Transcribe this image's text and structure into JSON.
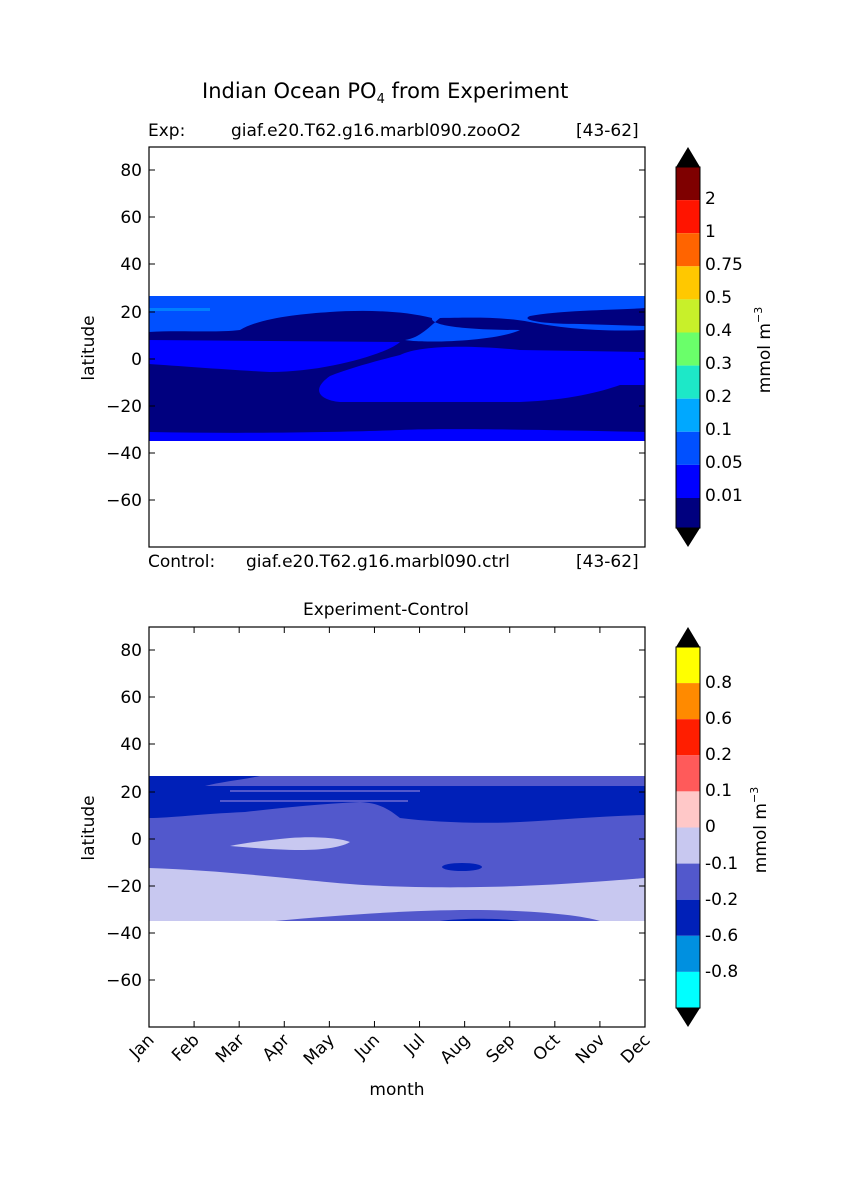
{
  "figure": {
    "title_main": "Indian Ocean PO",
    "title_sub": "4",
    "title_rest": " from Experiment"
  },
  "panel_top": {
    "exp_label": "Exp:",
    "exp_name": "giaf.e20.T62.g16.marbl090.zooO2",
    "exp_years": "[43-62]",
    "control_label": "Control:",
    "control_name": "giaf.e20.T62.g16.marbl090.ctrl",
    "control_years": "[43-62]"
  },
  "panel_bottom": {
    "title": "Experiment-Control"
  },
  "colorbar_top": {
    "unit": "mmol m",
    "unit_exp": "−3",
    "levels": [
      "0.01",
      "0.05",
      "0.1",
      "0.2",
      "0.3",
      "0.4",
      "0.5",
      "0.75",
      "1",
      "2"
    ],
    "colors": [
      "#00007f",
      "#0000ff",
      "#0050ff",
      "#00a8ff",
      "#1de8c8",
      "#6aff6a",
      "#c8f02a",
      "#ffc800",
      "#ff6400",
      "#ff1400",
      "#7f0000"
    ],
    "extend_colors": [
      "#000000",
      "#000000"
    ]
  },
  "colorbar_bottom": {
    "unit": "mmol m",
    "unit_exp": "−3",
    "levels": [
      "-0.8",
      "-0.6",
      "-0.2",
      "-0.1",
      "0",
      "0.1",
      "0.2",
      "0.6",
      "0.8"
    ],
    "colors": [
      "#00ffff",
      "#0090e0",
      "#0020b8",
      "#5258cc",
      "#c8c8f0",
      "#ffc8c8",
      "#ff5a5a",
      "#ff1e00",
      "#ff8a00",
      "#ffff00"
    ],
    "extend_colors": [
      "#000000",
      "#000000"
    ]
  },
  "chart_data": [
    {
      "type": "heatmap",
      "title": "Indian Ocean PO4 from Experiment",
      "xlabel": "",
      "ylabel": "latitude",
      "y_ticks": [
        80,
        60,
        40,
        20,
        0,
        -20,
        -40,
        -60
      ],
      "ylim": [
        -80,
        90
      ],
      "data_lat_range": [
        -34,
        27
      ],
      "regions": [
        {
          "value_range": "0.05-0.1",
          "lat_range": [
            23,
            27
          ],
          "note": "northern edge"
        },
        {
          "value_range": "0.05-0.1",
          "lat_range": [
            8,
            21
          ],
          "months": [
            "Jul",
            "Aug",
            "Sep"
          ]
        },
        {
          "value_range": "0.01-0.05",
          "lat_range": [
            -5,
            8
          ]
        },
        {
          "value_range": "0-0.01",
          "lat_range": [
            -34,
            -5
          ]
        }
      ]
    },
    {
      "type": "heatmap",
      "title": "Experiment-Control",
      "xlabel": "month",
      "ylabel": "latitude",
      "x_ticks": [
        "Jan",
        "Feb",
        "Mar",
        "Apr",
        "May",
        "Jun",
        "Jul",
        "Aug",
        "Sep",
        "Oct",
        "Nov",
        "Dec"
      ],
      "y_ticks": [
        80,
        60,
        40,
        20,
        0,
        -20,
        -40,
        -60
      ],
      "ylim": [
        -80,
        90
      ],
      "data_lat_range": [
        -34,
        27
      ],
      "regions": [
        {
          "value_range": "-0.2 to -0.1",
          "lat_range": [
            22,
            27
          ]
        },
        {
          "value_range": "-0.6 to -0.2",
          "lat_range": [
            8,
            22
          ]
        },
        {
          "value_range": "-0.2 to -0.1",
          "lat_range": [
            -20,
            8
          ]
        },
        {
          "value_range": "-0.1 to 0",
          "lat_range": [
            -34,
            -12
          ]
        },
        {
          "value_range": "-0.1 to 0",
          "lat_range": [
            -4,
            -1
          ],
          "months": [
            "Mar",
            "Apr",
            "May"
          ]
        },
        {
          "value_range": "-0.6 to -0.2",
          "lat_range": [
            -12,
            -10
          ],
          "months": [
            "Aug"
          ]
        }
      ]
    }
  ]
}
